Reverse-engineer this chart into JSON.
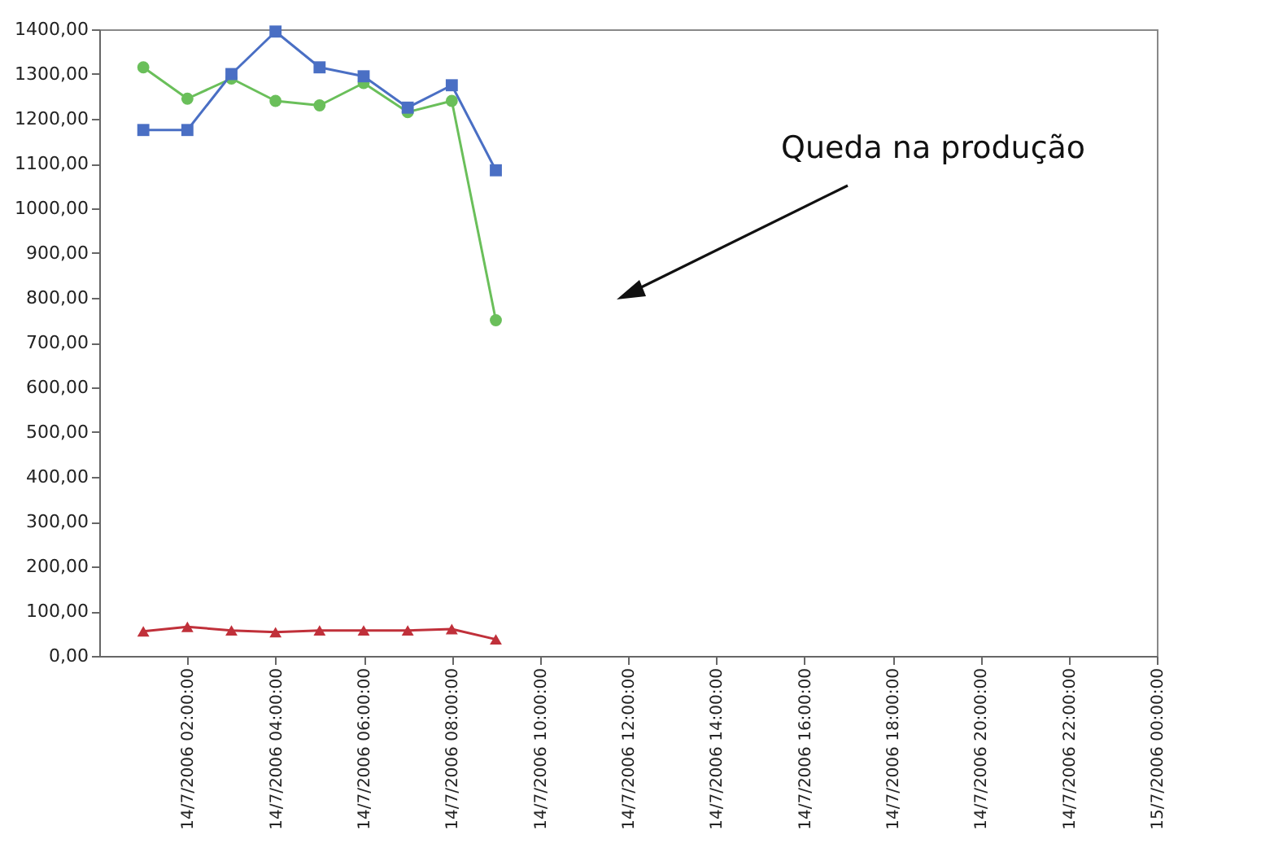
{
  "chart_data": {
    "type": "line",
    "x": [
      "2006-07-14T01:00",
      "2006-07-14T02:00",
      "2006-07-14T03:00",
      "2006-07-14T04:00",
      "2006-07-14T05:00",
      "2006-07-14T06:00",
      "2006-07-14T07:00",
      "2006-07-14T08:00",
      "2006-07-14T09:00"
    ],
    "series": [
      {
        "color": "#4a6fc4",
        "marker": "square",
        "values": [
          1175,
          1175,
          1300,
          1395,
          1315,
          1295,
          1225,
          1275,
          1085
        ]
      },
      {
        "color": "#6abf5a",
        "marker": "circle",
        "values": [
          1315,
          1245,
          1290,
          1240,
          1230,
          1280,
          1215,
          1240,
          750
        ]
      },
      {
        "color": "#c0303a",
        "marker": "triangle",
        "values": [
          55,
          65,
          57,
          53,
          57,
          57,
          57,
          60,
          37
        ]
      }
    ],
    "xlim": [
      "2006-07-14T00:00",
      "2006-07-15T00:00"
    ],
    "xticks": [
      {
        "value": "2006-07-14T02:00",
        "label": "14/7/2006 02:00:00"
      },
      {
        "value": "2006-07-14T04:00",
        "label": "14/7/2006 04:00:00"
      },
      {
        "value": "2006-07-14T06:00",
        "label": "14/7/2006 06:00:00"
      },
      {
        "value": "2006-07-14T08:00",
        "label": "14/7/2006 08:00:00"
      },
      {
        "value": "2006-07-14T10:00",
        "label": "14/7/2006 10:00:00"
      },
      {
        "value": "2006-07-14T12:00",
        "label": "14/7/2006 12:00:00"
      },
      {
        "value": "2006-07-14T14:00",
        "label": "14/7/2006 14:00:00"
      },
      {
        "value": "2006-07-14T16:00",
        "label": "14/7/2006 16:00:00"
      },
      {
        "value": "2006-07-14T18:00",
        "label": "14/7/2006 18:00:00"
      },
      {
        "value": "2006-07-14T20:00",
        "label": "14/7/2006 20:00:00"
      },
      {
        "value": "2006-07-14T22:00",
        "label": "14/7/2006 22:00:00"
      },
      {
        "value": "2006-07-15T00:00",
        "label": "15/7/2006 00:00:00"
      }
    ],
    "ylim": [
      0,
      1400
    ],
    "yticks": [
      {
        "value": 0,
        "label": "0,00"
      },
      {
        "value": 100,
        "label": "100,00"
      },
      {
        "value": 200,
        "label": "200,00"
      },
      {
        "value": 300,
        "label": "300,00"
      },
      {
        "value": 400,
        "label": "400,00"
      },
      {
        "value": 500,
        "label": "500,00"
      },
      {
        "value": 600,
        "label": "600,00"
      },
      {
        "value": 700,
        "label": "700,00"
      },
      {
        "value": 800,
        "label": "800,00"
      },
      {
        "value": 900,
        "label": "900,00"
      },
      {
        "value": 1000,
        "label": "1000,00"
      },
      {
        "value": 1100,
        "label": "1100,00"
      },
      {
        "value": 1200,
        "label": "1200,00"
      },
      {
        "value": 1300,
        "label": "1300,00"
      },
      {
        "value": 1400,
        "label": "1400,00"
      }
    ],
    "grid": false,
    "line_style": "solid",
    "annotations": [
      "Queda na produção"
    ]
  }
}
